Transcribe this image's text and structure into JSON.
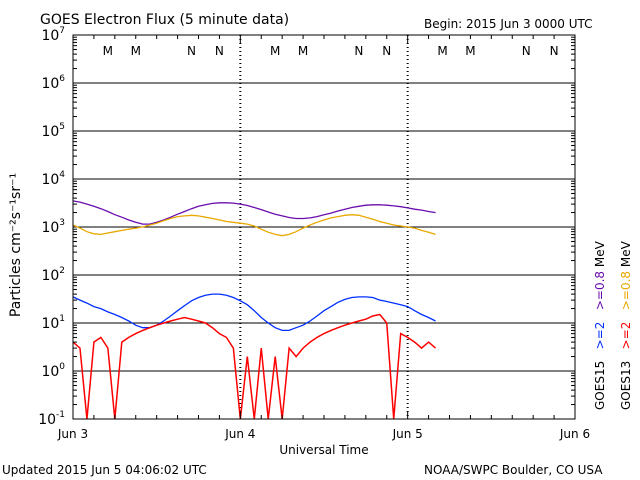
{
  "chart_data": {
    "type": "line",
    "title": "GOES Electron Flux (5 minute data)",
    "begin": "Begin: 2015 Jun 3 0000 UTC",
    "xlabel": "Universal Time",
    "ylabel": "Particles cm⁻²s⁻¹sr⁻¹",
    "yscale": "log",
    "ylim": [
      0.1,
      10000000
    ],
    "yticks": [
      {
        "base": "10",
        "exp": "7",
        "value": 10000000
      },
      {
        "base": "10",
        "exp": "6",
        "value": 1000000
      },
      {
        "base": "10",
        "exp": "5",
        "value": 100000
      },
      {
        "base": "10",
        "exp": "4",
        "value": 10000
      },
      {
        "base": "10",
        "exp": "3",
        "value": 1000
      },
      {
        "base": "10",
        "exp": "2",
        "value": 100
      },
      {
        "base": "10",
        "exp": "1",
        "value": 10
      },
      {
        "base": "10",
        "exp": "0",
        "value": 1
      },
      {
        "base": "10",
        "exp": "-1",
        "value": 0.1
      }
    ],
    "xticks": [
      {
        "label": "Jun 3",
        "hour": 0
      },
      {
        "label": "Jun 4",
        "hour": 24
      },
      {
        "label": "Jun 5",
        "hour": 48
      },
      {
        "label": "Jun 6",
        "hour": 72
      }
    ],
    "x_unit": "hours since 2015 Jun 3 00:00 UTC",
    "xlim": [
      0,
      72
    ],
    "threshold": 1000,
    "markers": [
      {
        "label": "M",
        "hour": 5,
        "color": "#e00000"
      },
      {
        "label": "M",
        "hour": 9,
        "color": "#0020e0"
      },
      {
        "label": "N",
        "hour": 17,
        "color": "#e00000"
      },
      {
        "label": "N",
        "hour": 21,
        "color": "#0020e0"
      },
      {
        "label": "M",
        "hour": 29,
        "color": "#e00000"
      },
      {
        "label": "M",
        "hour": 33,
        "color": "#0020e0"
      },
      {
        "label": "N",
        "hour": 41,
        "color": "#e00000"
      },
      {
        "label": "N",
        "hour": 45,
        "color": "#0020e0"
      },
      {
        "label": "M",
        "hour": 53,
        "color": "#e00000"
      },
      {
        "label": "M",
        "hour": 57,
        "color": "#0020e0"
      },
      {
        "label": "N",
        "hour": 65,
        "color": "#e00000"
      },
      {
        "label": "N",
        "hour": 69,
        "color": "#0020e0"
      }
    ],
    "series": [
      {
        "name": "GOES15 >=0.8 MeV",
        "color": "#6a0dad",
        "values": [
          3500,
          3300,
          3000,
          2700,
          2400,
          2100,
          1800,
          1600,
          1400,
          1250,
          1150,
          1150,
          1250,
          1400,
          1600,
          1850,
          2100,
          2400,
          2700,
          2900,
          3100,
          3200,
          3200,
          3150,
          3000,
          2800,
          2550,
          2300,
          2050,
          1850,
          1700,
          1580,
          1500,
          1500,
          1550,
          1650,
          1800,
          1950,
          2150,
          2350,
          2550,
          2700,
          2850,
          2900,
          2900,
          2850,
          2750,
          2650,
          2500,
          2350,
          2250,
          2100,
          2000
        ]
      },
      {
        "name": "GOES13 >=0.8 MeV",
        "color": "#e8a800",
        "values": [
          1100,
          950,
          800,
          720,
          700,
          750,
          800,
          850,
          900,
          950,
          1000,
          1100,
          1200,
          1350,
          1500,
          1650,
          1700,
          1750,
          1700,
          1600,
          1500,
          1400,
          1300,
          1250,
          1200,
          1150,
          1050,
          900,
          780,
          700,
          660,
          700,
          800,
          950,
          1100,
          1250,
          1400,
          1550,
          1650,
          1750,
          1800,
          1750,
          1600,
          1450,
          1300,
          1200,
          1100,
          1050,
          1000,
          950,
          850,
          780,
          700
        ]
      },
      {
        "name": "GOES15 >=2 MeV",
        "color": "#0030ff",
        "values": [
          35,
          30,
          26,
          22,
          20,
          17,
          15,
          13,
          11,
          9,
          8,
          8,
          9,
          11,
          14,
          18,
          23,
          29,
          34,
          38,
          40,
          40,
          38,
          34,
          29,
          24,
          18,
          13,
          10,
          8,
          7,
          7,
          8,
          9,
          11,
          14,
          18,
          22,
          27,
          31,
          34,
          35,
          35,
          34,
          30,
          28,
          26,
          24,
          22,
          18,
          15,
          13,
          11
        ]
      },
      {
        "name": "GOES13 >=2 MeV",
        "color": "#ff0000",
        "values": [
          4,
          3,
          0.1,
          4,
          5,
          3,
          0.1,
          4,
          5,
          6,
          7,
          8,
          9,
          10,
          11,
          12,
          13,
          12,
          11,
          10,
          8,
          6,
          5,
          3,
          0.1,
          2,
          0.1,
          3,
          0.1,
          2,
          0.1,
          3,
          2,
          3,
          4,
          5,
          6,
          7,
          8,
          9,
          10,
          11,
          12,
          14,
          15,
          10,
          0.1,
          6,
          5,
          4,
          3,
          4,
          3
        ]
      }
    ],
    "legend": {
      "placement": "right",
      "columns": [
        {
          "satellite": "GOES15",
          "low": ">=2",
          "high": ">=0.8",
          "unit": "MeV",
          "low_color": "#0030ff",
          "high_color": "#6a0dad"
        },
        {
          "satellite": "GOES13",
          "low": ">=2",
          "high": ">=0.8",
          "unit": "MeV",
          "low_color": "#ff0000",
          "high_color": "#e8a800"
        }
      ]
    }
  },
  "footer": {
    "updated": "Updated 2015 Jun  5 04:06:02 UTC",
    "credit": "NOAA/SWPC Boulder, CO USA"
  }
}
